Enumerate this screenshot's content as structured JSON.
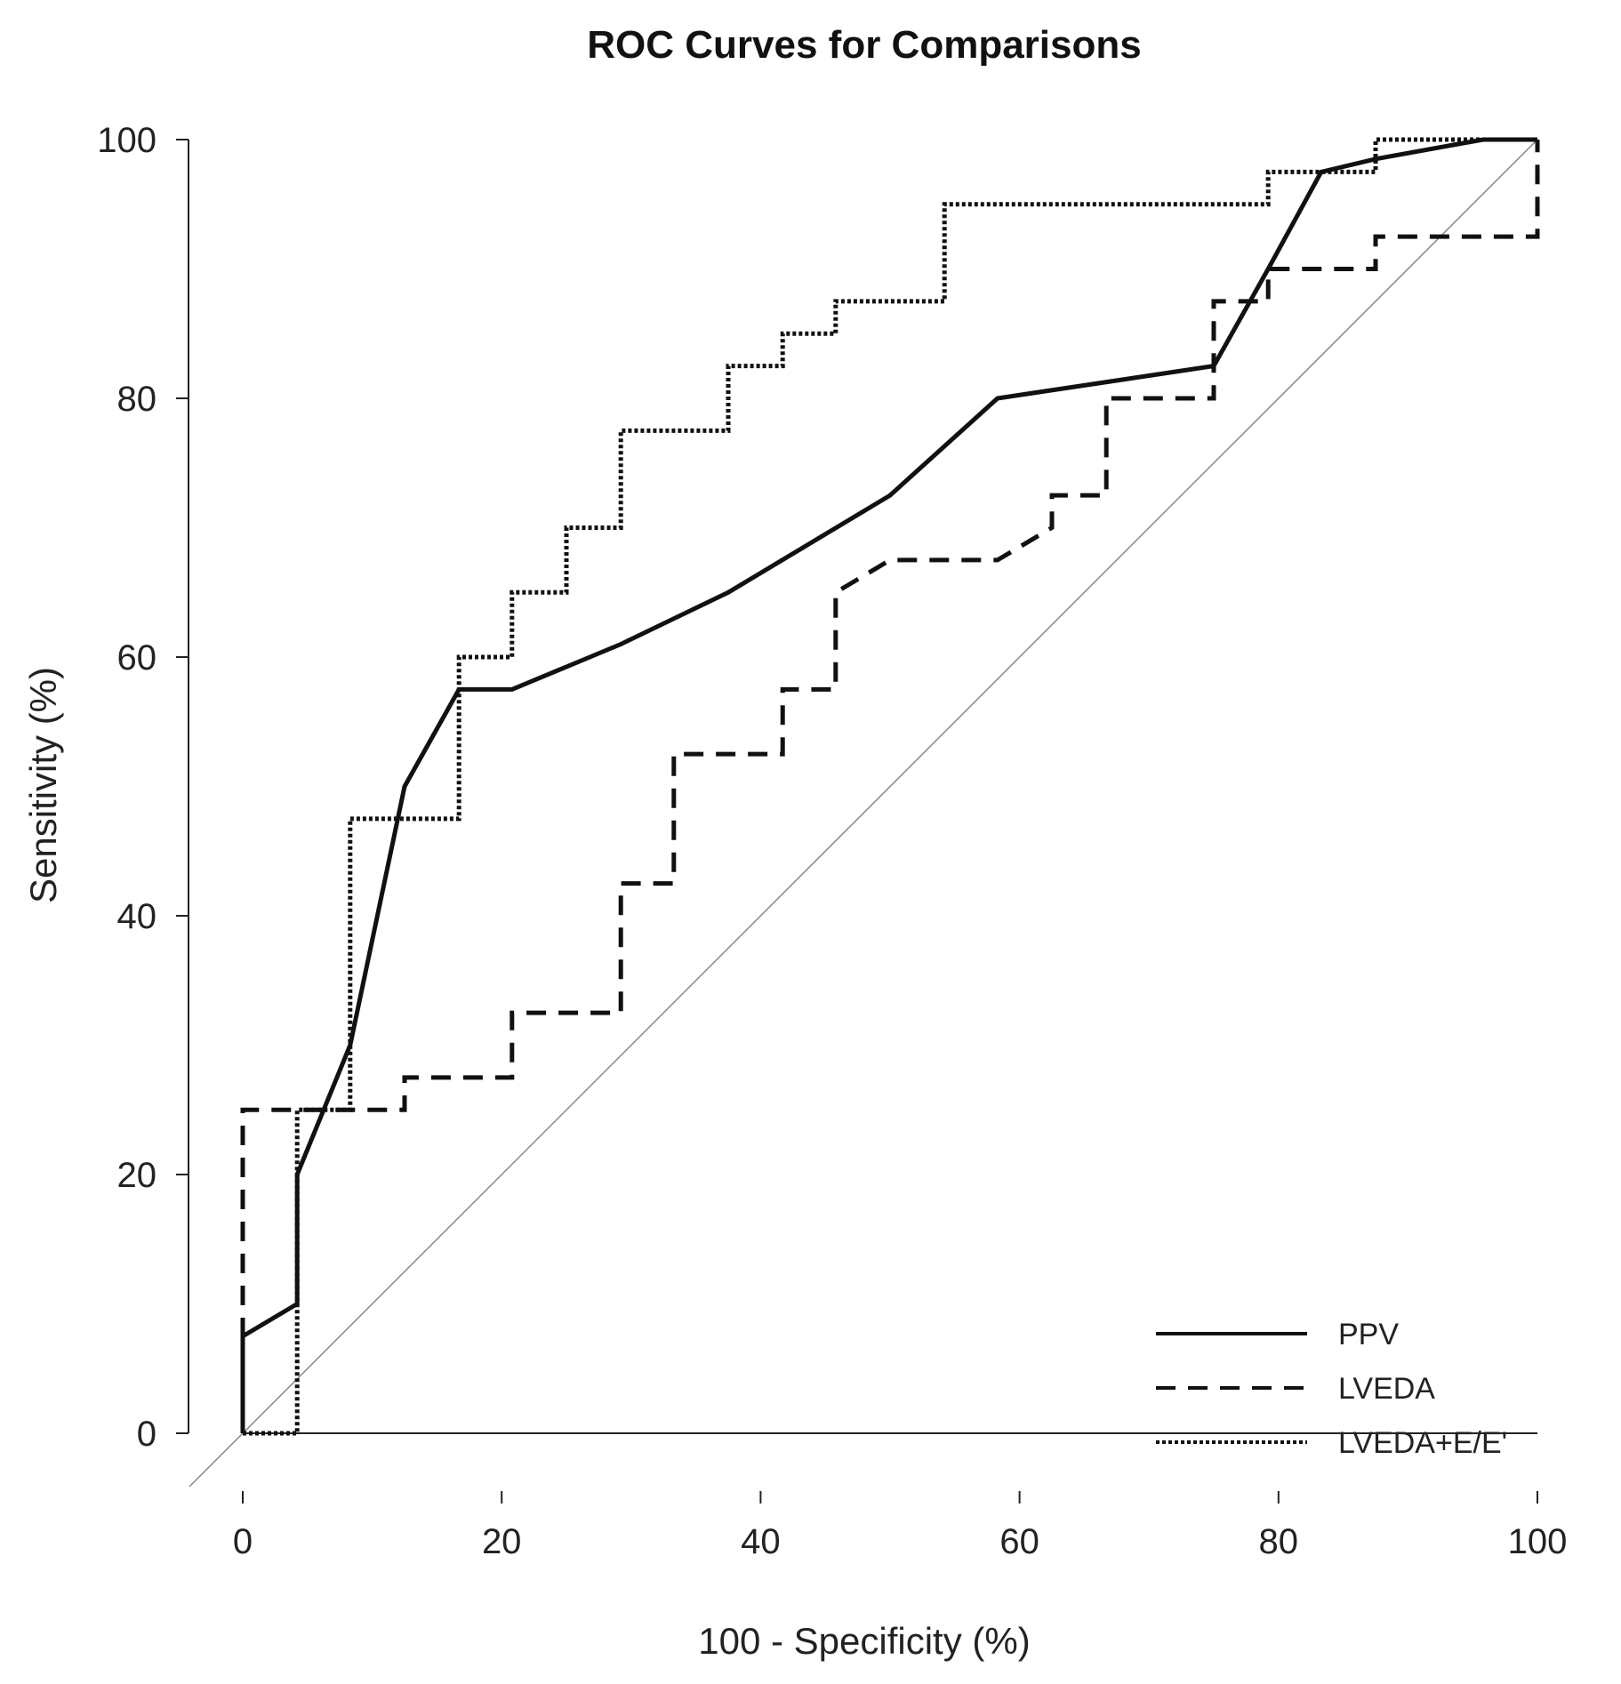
{
  "chart_data": {
    "type": "line",
    "title": "ROC Curves for Comparisons",
    "xlabel": "100 - Specificity (%)",
    "ylabel": "Sensitivity (%)",
    "xlim": [
      0,
      100
    ],
    "ylim": [
      0,
      100
    ],
    "x_ticks": [
      0,
      20,
      40,
      60,
      80,
      100
    ],
    "y_ticks": [
      0,
      20,
      40,
      60,
      80,
      100
    ],
    "legend_position": "bottom-right",
    "reference_line": {
      "x": [
        0,
        100
      ],
      "y": [
        0,
        100
      ]
    },
    "series": [
      {
        "name": "PPV",
        "style": "solid",
        "x": [
          0,
          0,
          4.2,
          4.2,
          8.3,
          12.5,
          16.7,
          20.8,
          29.2,
          37.5,
          50,
          58.3,
          75,
          79.2,
          83.3,
          87.5,
          95.8,
          100
        ],
        "y": [
          0,
          7.5,
          10,
          20,
          30,
          50,
          57.5,
          57.5,
          61,
          65,
          72.5,
          80,
          82.5,
          90,
          97.5,
          98.5,
          100,
          100
        ]
      },
      {
        "name": "LVEDA",
        "style": "dashed",
        "x": [
          0,
          0,
          12.5,
          12.5,
          20.8,
          20.8,
          29.2,
          29.2,
          33.3,
          33.3,
          41.7,
          41.7,
          45.8,
          45.8,
          50,
          58.3,
          62.5,
          62.5,
          66.7,
          66.7,
          75,
          75,
          79.2,
          79.2,
          87.5,
          87.5,
          100,
          100
        ],
        "y": [
          0,
          25,
          25,
          27.5,
          27.5,
          32.5,
          32.5,
          42.5,
          42.5,
          52.5,
          52.5,
          57.5,
          57.5,
          65,
          67.5,
          67.5,
          70,
          72.5,
          72.5,
          80,
          80,
          87.5,
          87.5,
          90,
          90,
          92.5,
          92.5,
          100
        ]
      },
      {
        "name": "LVEDA+E/E'",
        "style": "dotted",
        "x": [
          0,
          4.2,
          4.2,
          8.3,
          8.3,
          16.7,
          16.7,
          20.8,
          20.8,
          25,
          25,
          29.2,
          29.2,
          37.5,
          37.5,
          41.7,
          41.7,
          45.8,
          45.8,
          54.2,
          54.2,
          79.2,
          79.2,
          87.5,
          87.5,
          100
        ],
        "y": [
          0,
          0,
          25,
          25,
          47.5,
          47.5,
          60,
          60,
          65,
          65,
          70,
          70,
          77.5,
          77.5,
          82.5,
          82.5,
          85,
          85,
          87.5,
          87.5,
          95,
          95,
          97.5,
          97.5,
          100,
          100
        ]
      }
    ]
  }
}
